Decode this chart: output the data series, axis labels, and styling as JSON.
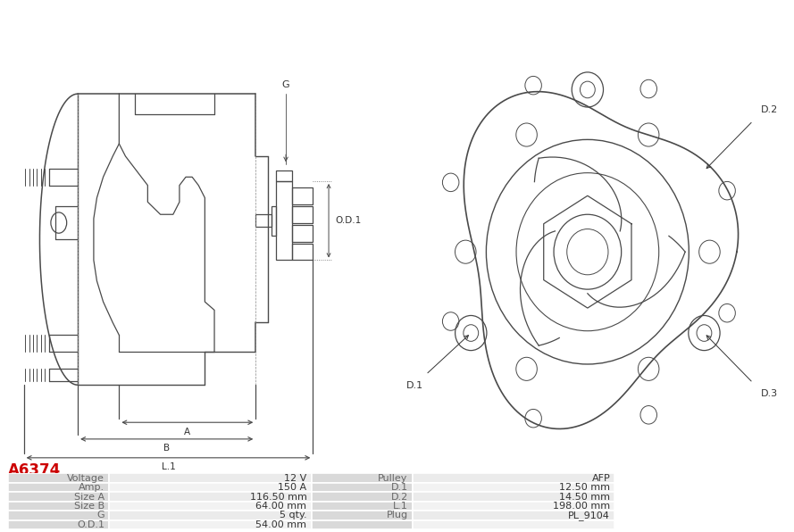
{
  "title": "A6374",
  "title_color": "#cc0000",
  "bg_color": "#ffffff",
  "lc": "#4a4a4a",
  "table": {
    "rows": [
      [
        "Voltage",
        "12 V",
        "Pulley",
        "AFP"
      ],
      [
        "Amp.",
        "150 A",
        "D.1",
        "12.50 mm"
      ],
      [
        "Size A",
        "116.50 mm",
        "D.2",
        "14.50 mm"
      ],
      [
        "Size B",
        "64.00 mm",
        "L.1",
        "198.00 mm"
      ],
      [
        "G",
        "5 qty.",
        "Plug",
        "PL_9104"
      ],
      [
        "O.D.1",
        "54.00 mm",
        "",
        ""
      ]
    ],
    "label_bg": "#d9d9d9",
    "val_bg_odd": "#ebebeb",
    "val_bg_even": "#f2f2f2",
    "border_color": "#ffffff",
    "text_label_color": "#666666",
    "text_val_color": "#333333"
  }
}
